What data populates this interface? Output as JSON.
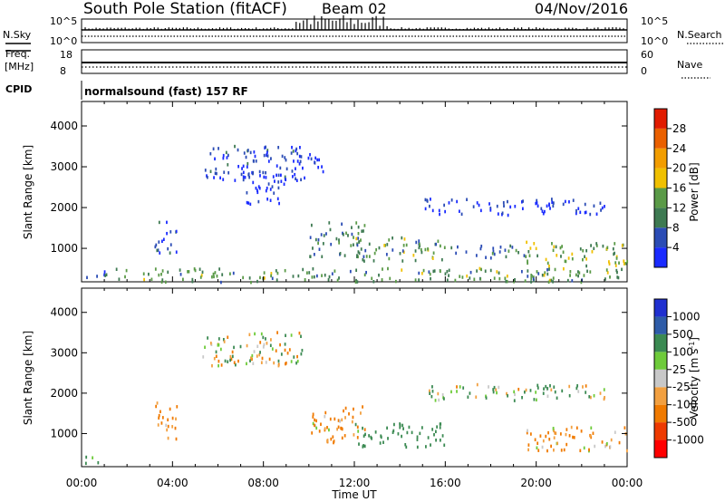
{
  "header": {
    "station": "South Pole Station (fitACF)",
    "beam": "Beam 02",
    "date": "04/Nov/2016"
  },
  "strips": {
    "nsky_label": "N.Sky",
    "nsky_ticks": [
      "10^5",
      "10^0"
    ],
    "nsearch_label": "N.Search",
    "nsearch_ticks": [
      "10^5",
      "10^0"
    ],
    "freq_label_line1": "Freq.",
    "freq_label_line2": "[MHz]",
    "freq_ticks": [
      "18",
      "8"
    ],
    "nave_label": "Nave",
    "nave_ticks": [
      "60",
      "0"
    ],
    "cpid_label": "CPID",
    "cpid_text": "normalsound (fast) 157 RF"
  },
  "colors": {
    "power_scale": [
      "#1a2bff",
      "#2b4cb5",
      "#3e7a52",
      "#5a9a47",
      "#f0c000",
      "#f29d00",
      "#ea6000",
      "#e11b00"
    ],
    "velocity_scale": [
      "#ff0000",
      "#ee3a00",
      "#f07a00",
      "#f2a040",
      "#c8c8c8",
      "#6ecb3a",
      "#3b8a52",
      "#2e5ca8",
      "#2030d0"
    ]
  },
  "chart_data": [
    {
      "type": "heatmap",
      "name_role": "power-panel",
      "xlabel": "",
      "ylabel": "Slant Range [km]",
      "yticks": [
        "1000",
        "2000",
        "3000",
        "4000"
      ],
      "ylim": [
        180,
        4600
      ],
      "xlim": [
        0,
        24
      ],
      "colorbar_label": "Power [dB]",
      "colorbar_ticks": [
        "4",
        "8",
        "12",
        "16",
        "20",
        "24",
        "28"
      ],
      "regions": [
        {
          "t0": 5.3,
          "t1": 9.8,
          "r0": 2700,
          "r1": 3550,
          "value_db": 6
        },
        {
          "t0": 7.0,
          "t1": 9.0,
          "r0": 2100,
          "r1": 3000,
          "value_db": 5
        },
        {
          "t0": 9.2,
          "t1": 10.6,
          "r0": 2900,
          "r1": 3350,
          "value_db": 5
        },
        {
          "t0": 15.0,
          "t1": 23.0,
          "r0": 1850,
          "r1": 2250,
          "value_db": 5
        },
        {
          "t0": 3.2,
          "t1": 4.2,
          "r0": 900,
          "r1": 1700,
          "value_db": 8
        },
        {
          "t0": 10.0,
          "t1": 12.5,
          "r0": 800,
          "r1": 1700,
          "value_db": 12
        },
        {
          "t0": 12.0,
          "t1": 16.0,
          "r0": 700,
          "r1": 1300,
          "value_db": 14
        },
        {
          "t0": 16.0,
          "t1": 19.5,
          "r0": 800,
          "r1": 1100,
          "value_db": 10
        },
        {
          "t0": 19.5,
          "t1": 24.0,
          "r0": 600,
          "r1": 1200,
          "value_db": 16
        },
        {
          "t0": 0.0,
          "t1": 1.0,
          "r0": 300,
          "r1": 500,
          "value_db": 4
        },
        {
          "t0": 1.0,
          "t1": 24.0,
          "r0": 200,
          "r1": 550,
          "value_db": 14
        }
      ]
    },
    {
      "type": "heatmap",
      "name_role": "velocity-panel",
      "xlabel": "Time UT",
      "ylabel": "Slant Range [km]",
      "xticks": [
        "00:00",
        "04:00",
        "08:00",
        "12:00",
        "16:00",
        "20:00",
        "00:00"
      ],
      "yticks": [
        "1000",
        "2000",
        "3000",
        "4000"
      ],
      "ylim": [
        180,
        4600
      ],
      "xlim": [
        0,
        24
      ],
      "colorbar_label": "Velocity [m s^-1]",
      "colorbar_ticks": [
        "1000",
        "500",
        "100",
        "25",
        "-25",
        "-100",
        "-500",
        "-1000"
      ],
      "regions": [
        {
          "t0": 5.3,
          "t1": 9.8,
          "r0": 2700,
          "r1": 3550,
          "value_ms": 0
        },
        {
          "t0": 15.0,
          "t1": 23.0,
          "r0": 1850,
          "r1": 2250,
          "value_ms": 60
        },
        {
          "t0": 3.2,
          "t1": 4.2,
          "r0": 900,
          "r1": 1800,
          "value_ms": -200
        },
        {
          "t0": 10.0,
          "t1": 12.5,
          "r0": 800,
          "r1": 1700,
          "value_ms": -150
        },
        {
          "t0": 12.0,
          "t1": 16.0,
          "r0": 700,
          "r1": 1300,
          "value_ms": 300
        },
        {
          "t0": 19.5,
          "t1": 24.0,
          "r0": 600,
          "r1": 1200,
          "value_ms": -150
        },
        {
          "t0": 0.0,
          "t1": 1.0,
          "r0": 300,
          "r1": 500,
          "value_ms": 200
        }
      ]
    }
  ]
}
